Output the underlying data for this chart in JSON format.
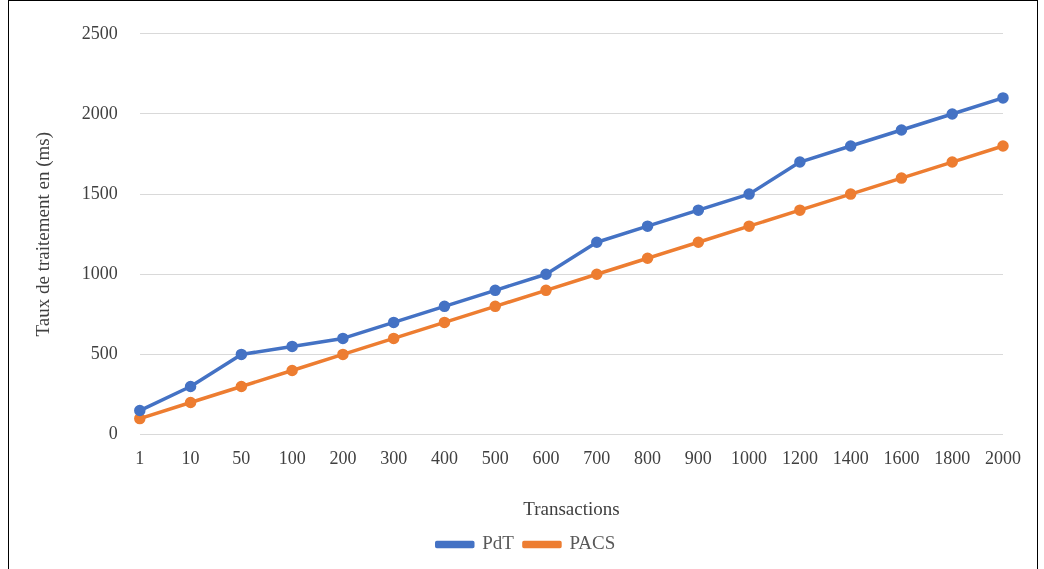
{
  "chart_data": {
    "type": "line",
    "xlabel": "Transactions",
    "ylabel": "Taux de traitement en (ms)",
    "categories": [
      "1",
      "10",
      "50",
      "100",
      "200",
      "300",
      "400",
      "500",
      "600",
      "700",
      "800",
      "900",
      "1000",
      "1200",
      "1400",
      "1600",
      "1800",
      "2000"
    ],
    "series": [
      {
        "name": "PdT",
        "color": "#4472c4",
        "values": [
          150,
          300,
          500,
          550,
          600,
          700,
          800,
          900,
          1000,
          1200,
          1300,
          1400,
          1500,
          1700,
          1800,
          1900,
          2000,
          2100
        ]
      },
      {
        "name": "PACS",
        "color": "#ed7d31",
        "values": [
          100,
          200,
          300,
          400,
          500,
          600,
          700,
          800,
          900,
          1000,
          1100,
          1200,
          1300,
          1400,
          1500,
          1600,
          1700,
          1800
        ]
      }
    ],
    "ylim": [
      0,
      2500
    ],
    "yticks": [
      0,
      500,
      1000,
      1500,
      2000,
      2500
    ],
    "grid": "y",
    "legend": "bottom",
    "marker": "circle",
    "line_style": "solid"
  }
}
